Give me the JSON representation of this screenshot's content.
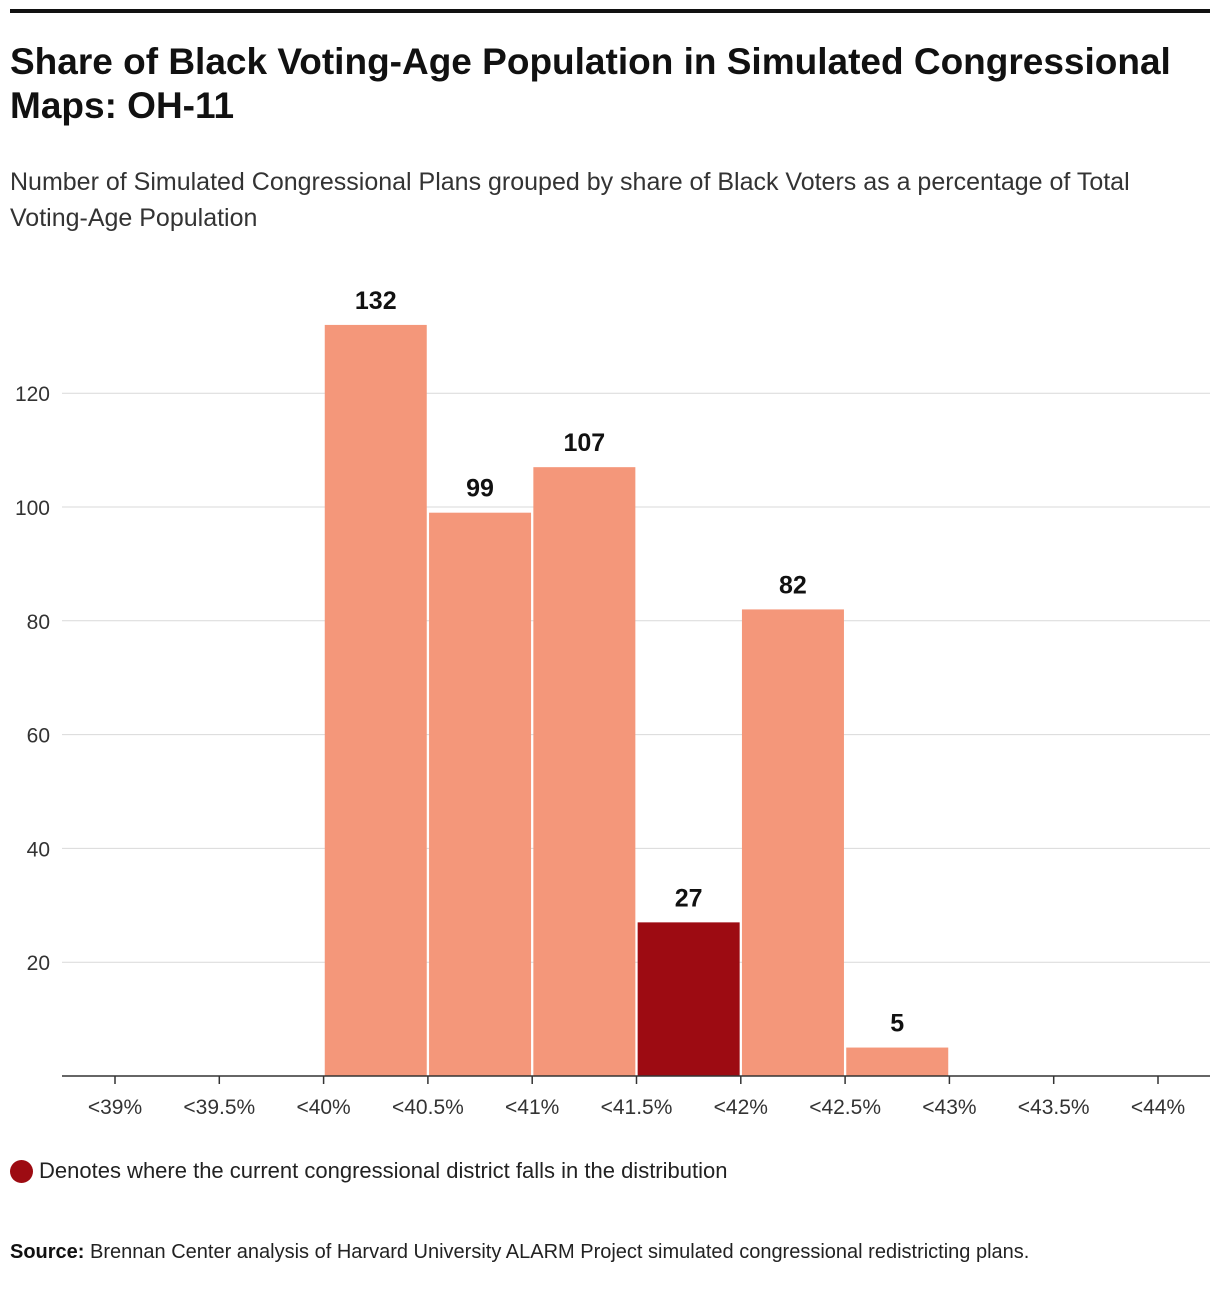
{
  "header": {
    "title": "Share of Black Voting-Age Population in Simulated Congressional Maps: OH-11",
    "subtitle": "Number of Simulated Congressional Plans grouped by share of Black Voters as a percentage of Total Voting-Age Population"
  },
  "chart_data": {
    "type": "bar",
    "title": "Share of Black Voting-Age Population in Simulated Congressional Maps: OH-11",
    "subtitle": "Number of Simulated Congressional Plans grouped by share of Black Voters as a percentage of Total Voting-Age Population",
    "xlabel": "",
    "ylabel": "",
    "x_ticks": [
      "<39%",
      "<39.5%",
      "<40%",
      "<40.5%",
      "<41%",
      "<41.5%",
      "<42%",
      "<42.5%",
      "<43%",
      "<43.5%",
      "<44%"
    ],
    "categories": [
      "<40.5%",
      "<41%",
      "<41.5%",
      "<42%",
      "<42.5%",
      "<43%"
    ],
    "values": [
      132,
      99,
      107,
      27,
      82,
      5
    ],
    "highlight_category": "<42%",
    "y_ticks": [
      20,
      40,
      60,
      80,
      100,
      120
    ],
    "ylim": [
      0,
      140
    ],
    "grid": "horizontal",
    "colors": {
      "bar": "#f4977a",
      "highlight": "#9d0b12",
      "grid": "#d9d9d9",
      "axis": "#333333"
    }
  },
  "legend": {
    "text": "Denotes where the current congressional district falls in the distribution",
    "color": "#9d0b12"
  },
  "source": {
    "label": "Source:",
    "text": "Brennan Center analysis of Harvard University ALARM Project simulated congressional redistricting plans."
  }
}
